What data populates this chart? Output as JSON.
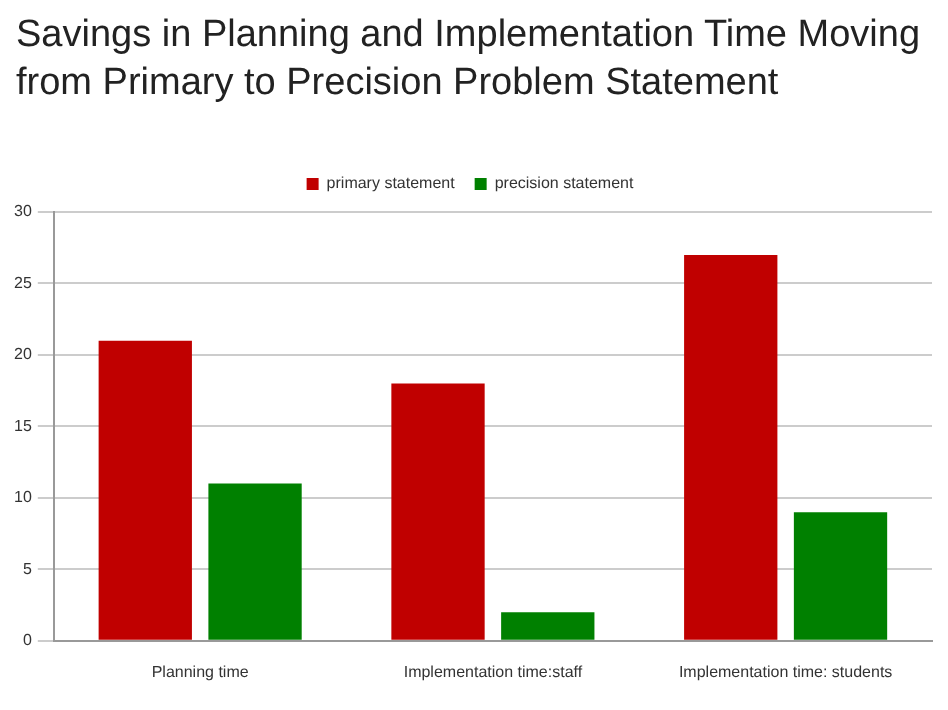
{
  "chart_data": {
    "type": "bar",
    "title": "Savings in Planning and Implementation Time Moving from Primary to Precision Problem Statement",
    "categories": [
      "Planning time",
      "Implementation time:staff",
      "Implementation time: students"
    ],
    "series": [
      {
        "name": "primary statement",
        "color": "#c00000",
        "values": [
          21,
          18,
          27
        ]
      },
      {
        "name": "precision statement",
        "color": "#008000",
        "values": [
          11,
          2,
          9
        ]
      }
    ],
    "ylim": [
      0,
      30
    ],
    "yticks": [
      0,
      5,
      10,
      15,
      20,
      25,
      30
    ],
    "grid": "y",
    "legend": "top"
  }
}
